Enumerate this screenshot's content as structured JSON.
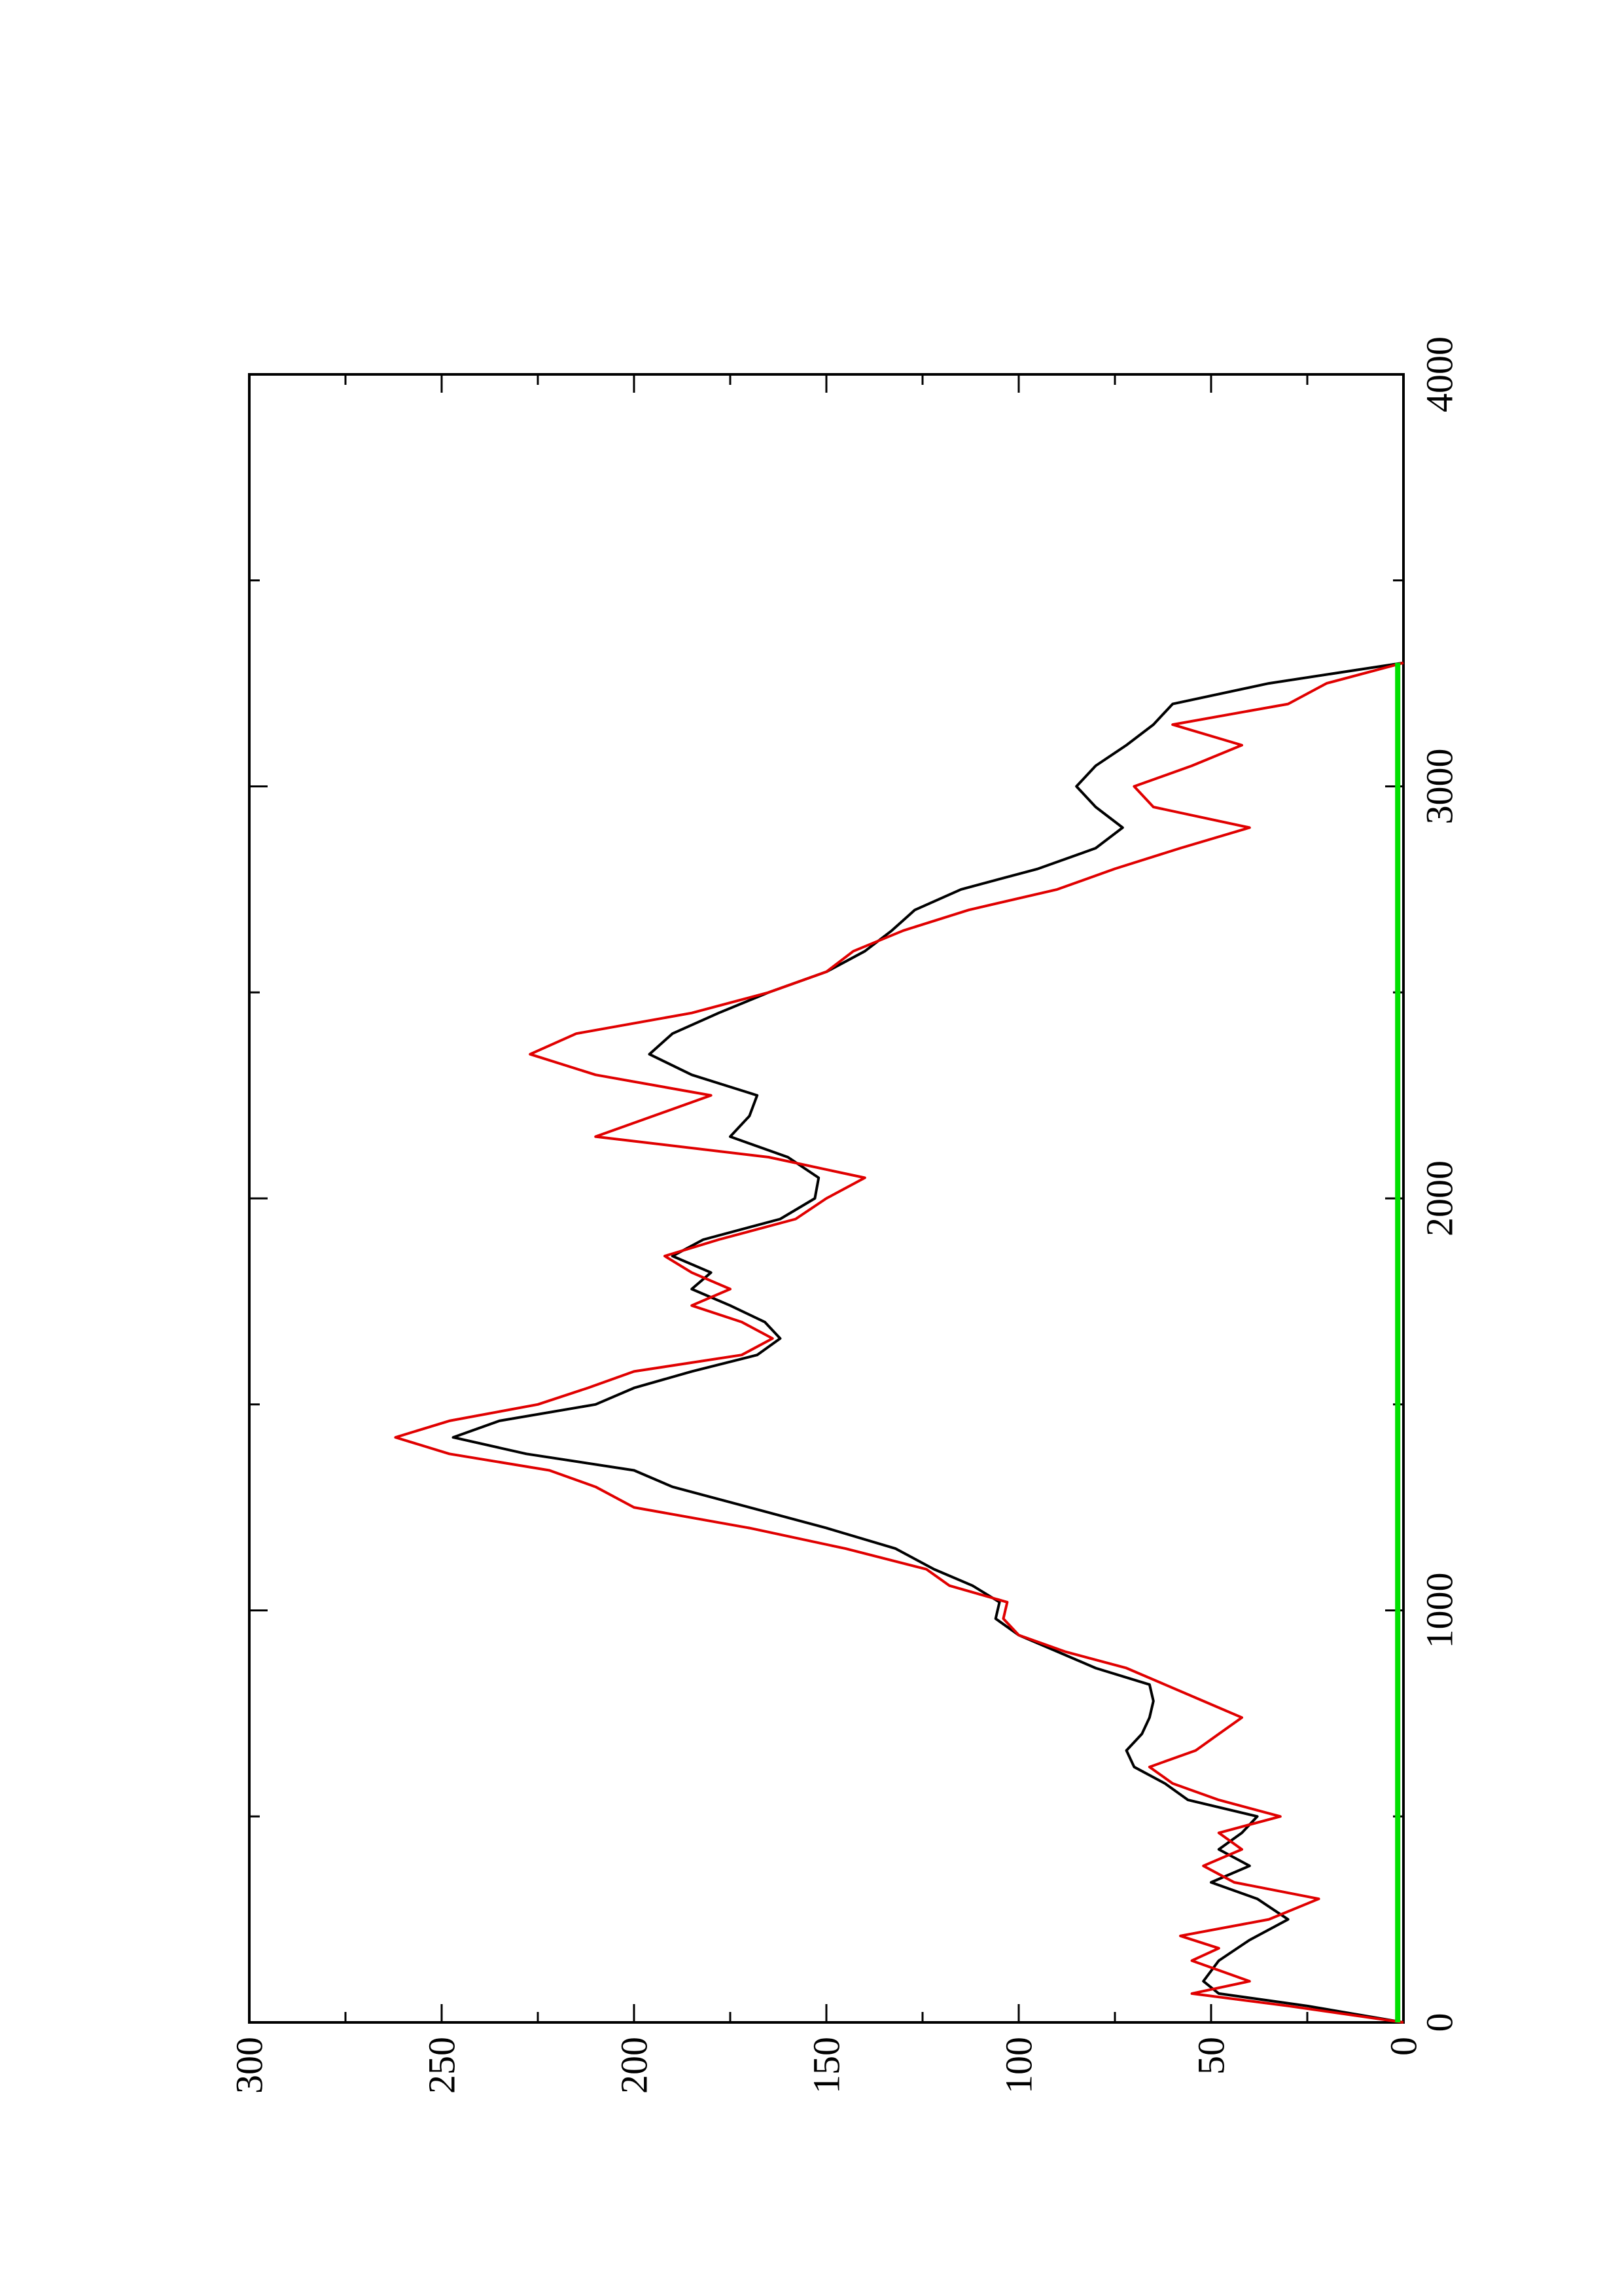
{
  "chart_data": {
    "type": "line",
    "orientation": "rotated-90-ccw",
    "xlim": [
      0,
      4000
    ],
    "ylim": [
      0,
      300
    ],
    "x_ticks": [
      "0",
      "1000",
      "2000",
      "3000",
      "4000"
    ],
    "y_ticks": [
      "0",
      "50",
      "100",
      "150",
      "200",
      "250",
      "300"
    ],
    "x_minor_step": 500,
    "y_minor_step": 25,
    "grid": false,
    "series": [
      {
        "color": "#000000",
        "x": [
          0,
          40,
          70,
          100,
          150,
          200,
          250,
          300,
          340,
          380,
          420,
          460,
          500,
          540,
          580,
          620,
          660,
          700,
          740,
          780,
          820,
          860,
          900,
          940,
          980,
          1020,
          1060,
          1100,
          1150,
          1200,
          1250,
          1300,
          1340,
          1380,
          1420,
          1460,
          1500,
          1540,
          1580,
          1620,
          1660,
          1700,
          1740,
          1780,
          1820,
          1860,
          1900,
          1950,
          2000,
          2050,
          2100,
          2150,
          2200,
          2250,
          2300,
          2350,
          2400,
          2450,
          2500,
          2550,
          2600,
          2650,
          2700,
          2750,
          2800,
          2850,
          2900,
          2950,
          3000,
          3050,
          3100,
          3150,
          3200,
          3250,
          3300
        ],
        "y": [
          0,
          25,
          48,
          52,
          48,
          40,
          30,
          38,
          50,
          40,
          48,
          42,
          38,
          56,
          62,
          70,
          72,
          68,
          66,
          65,
          66,
          80,
          90,
          100,
          106,
          105,
          112,
          122,
          132,
          150,
          170,
          190,
          200,
          228,
          247,
          235,
          210,
          200,
          185,
          168,
          162,
          166,
          175,
          185,
          180,
          190,
          182,
          162,
          153,
          152,
          160,
          175,
          170,
          168,
          185,
          196,
          190,
          178,
          165,
          150,
          140,
          133,
          127,
          115,
          95,
          80,
          73,
          80,
          85,
          80,
          72,
          65,
          60,
          35,
          0
        ]
      },
      {
        "color": "#e00000",
        "x": [
          0,
          40,
          70,
          100,
          150,
          180,
          210,
          250,
          300,
          340,
          380,
          420,
          460,
          500,
          540,
          580,
          620,
          660,
          700,
          740,
          780,
          820,
          860,
          900,
          940,
          980,
          1020,
          1060,
          1100,
          1150,
          1200,
          1250,
          1300,
          1340,
          1380,
          1420,
          1460,
          1500,
          1540,
          1580,
          1620,
          1660,
          1700,
          1740,
          1780,
          1820,
          1860,
          1900,
          1950,
          2000,
          2050,
          2100,
          2150,
          2200,
          2250,
          2300,
          2350,
          2400,
          2450,
          2500,
          2550,
          2600,
          2650,
          2700,
          2750,
          2800,
          2850,
          2900,
          2950,
          3000,
          3050,
          3100,
          3150,
          3200,
          3250,
          3300
        ],
        "y": [
          0,
          30,
          55,
          40,
          55,
          48,
          58,
          35,
          22,
          44,
          52,
          42,
          48,
          32,
          48,
          60,
          66,
          54,
          48,
          42,
          52,
          62,
          72,
          88,
          100,
          104,
          103,
          118,
          124,
          145,
          170,
          200,
          210,
          222,
          248,
          262,
          248,
          225,
          212,
          200,
          172,
          164,
          172,
          185,
          175,
          185,
          192,
          178,
          158,
          150,
          140,
          165,
          210,
          195,
          180,
          210,
          227,
          215,
          185,
          165,
          150,
          143,
          130,
          113,
          90,
          75,
          58,
          40,
          65,
          70,
          55,
          42,
          60,
          30,
          20,
          0
        ]
      },
      {
        "color": "#00e000",
        "x": [
          0,
          3300
        ],
        "y": [
          1.5,
          1.5
        ]
      }
    ]
  }
}
